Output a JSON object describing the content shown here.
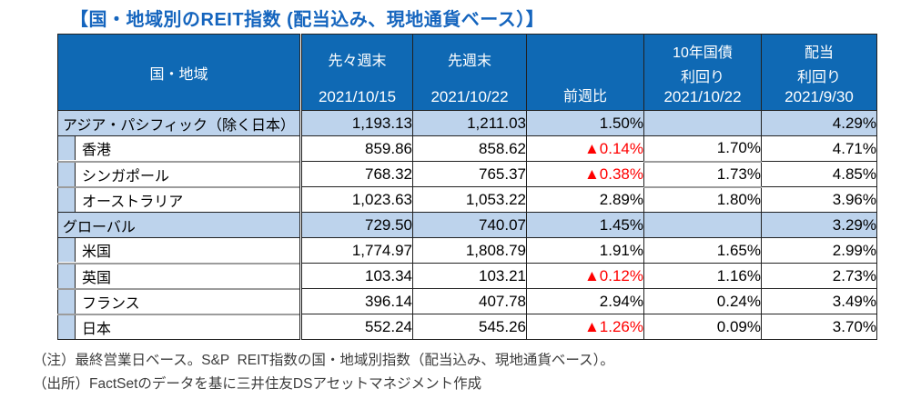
{
  "title": "【国・地域別のREIT指数 (配当込み、現地通貨ベース）】",
  "table": {
    "header": {
      "region": "国・地域",
      "prev2": {
        "label": "先々週末",
        "date": "2021/10/15"
      },
      "prev": {
        "label": "先週末",
        "date": "2021/10/22"
      },
      "wow": {
        "label": "前週比"
      },
      "jgb": {
        "label1": "10年国債",
        "label2": "利回り",
        "date": "2021/10/22"
      },
      "div": {
        "label1": "配当",
        "label2": "利回り",
        "date": "2021/9/30"
      }
    },
    "rows": [
      {
        "type": "group",
        "name": "アジア・パシフィック（除く日本）",
        "prev2": "1,193.13",
        "prev": "1,211.03",
        "wow": "1.50%",
        "jgb": "",
        "div": "4.29%"
      },
      {
        "type": "sub",
        "name": "香港",
        "prev2": "859.86",
        "prev": "858.62",
        "wow": "▲0.14%",
        "jgb": "1.70%",
        "div": "4.71%"
      },
      {
        "type": "sub",
        "name": "シンガポール",
        "prev2": "768.32",
        "prev": "765.37",
        "wow": "▲0.38%",
        "jgb": "1.73%",
        "div": "4.85%"
      },
      {
        "type": "sub",
        "name": "オーストラリア",
        "prev2": "1,023.63",
        "prev": "1,053.22",
        "wow": "2.89%",
        "jgb": "1.80%",
        "div": "3.96%"
      },
      {
        "type": "group",
        "name": "グローバル",
        "prev2": "729.50",
        "prev": "740.07",
        "wow": "1.45%",
        "jgb": "",
        "div": "3.29%"
      },
      {
        "type": "sub",
        "name": "米国",
        "prev2": "1,774.97",
        "prev": "1,808.79",
        "wow": "1.91%",
        "jgb": "1.65%",
        "div": "2.99%"
      },
      {
        "type": "sub",
        "name": "英国",
        "prev2": "103.34",
        "prev": "103.21",
        "wow": "▲0.12%",
        "jgb": "1.16%",
        "div": "2.73%"
      },
      {
        "type": "sub",
        "name": "フランス",
        "prev2": "396.14",
        "prev": "407.78",
        "wow": "2.94%",
        "jgb": "0.24%",
        "div": "3.49%"
      },
      {
        "type": "sub",
        "name": "日本",
        "prev2": "552.24",
        "prev": "545.26",
        "wow": "▲1.26%",
        "jgb": "0.09%",
        "div": "3.70%"
      }
    ]
  },
  "notes": [
    "（注）最終営業日ベース。S&P  REIT指数の国・地域別指数（配当込み、現地通貨ベース）。",
    "（出所）FactSetのデータを基に三井住友DSアセットマネジメント作成"
  ],
  "colors": {
    "title_blue": "#1565BE",
    "header_blue": "#0F69B4",
    "band_blue": "#BDD3EC",
    "negative_red": "#FF0000",
    "border_dark": "#212121",
    "separator_gray": "#9C9C9C"
  }
}
